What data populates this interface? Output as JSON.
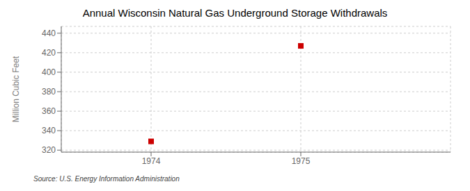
{
  "chart_data": {
    "type": "scatter",
    "title": "Annual Wisconsin Natural Gas Underground Storage Withdrawals",
    "y_label": "Million Cubic Feet",
    "annotations": [
      "Source: U.S. Energy Information Administration"
    ],
    "x": [
      1974,
      1975
    ],
    "values": [
      329,
      427
    ],
    "color": "#cc0000",
    "marker": "square",
    "xlim": [
      1973.4,
      1976.0
    ],
    "ylim": [
      318,
      447
    ],
    "xticks": [
      1974,
      1975
    ],
    "yticks": [
      320,
      340,
      360,
      380,
      400,
      420,
      440
    ],
    "grid": true
  }
}
